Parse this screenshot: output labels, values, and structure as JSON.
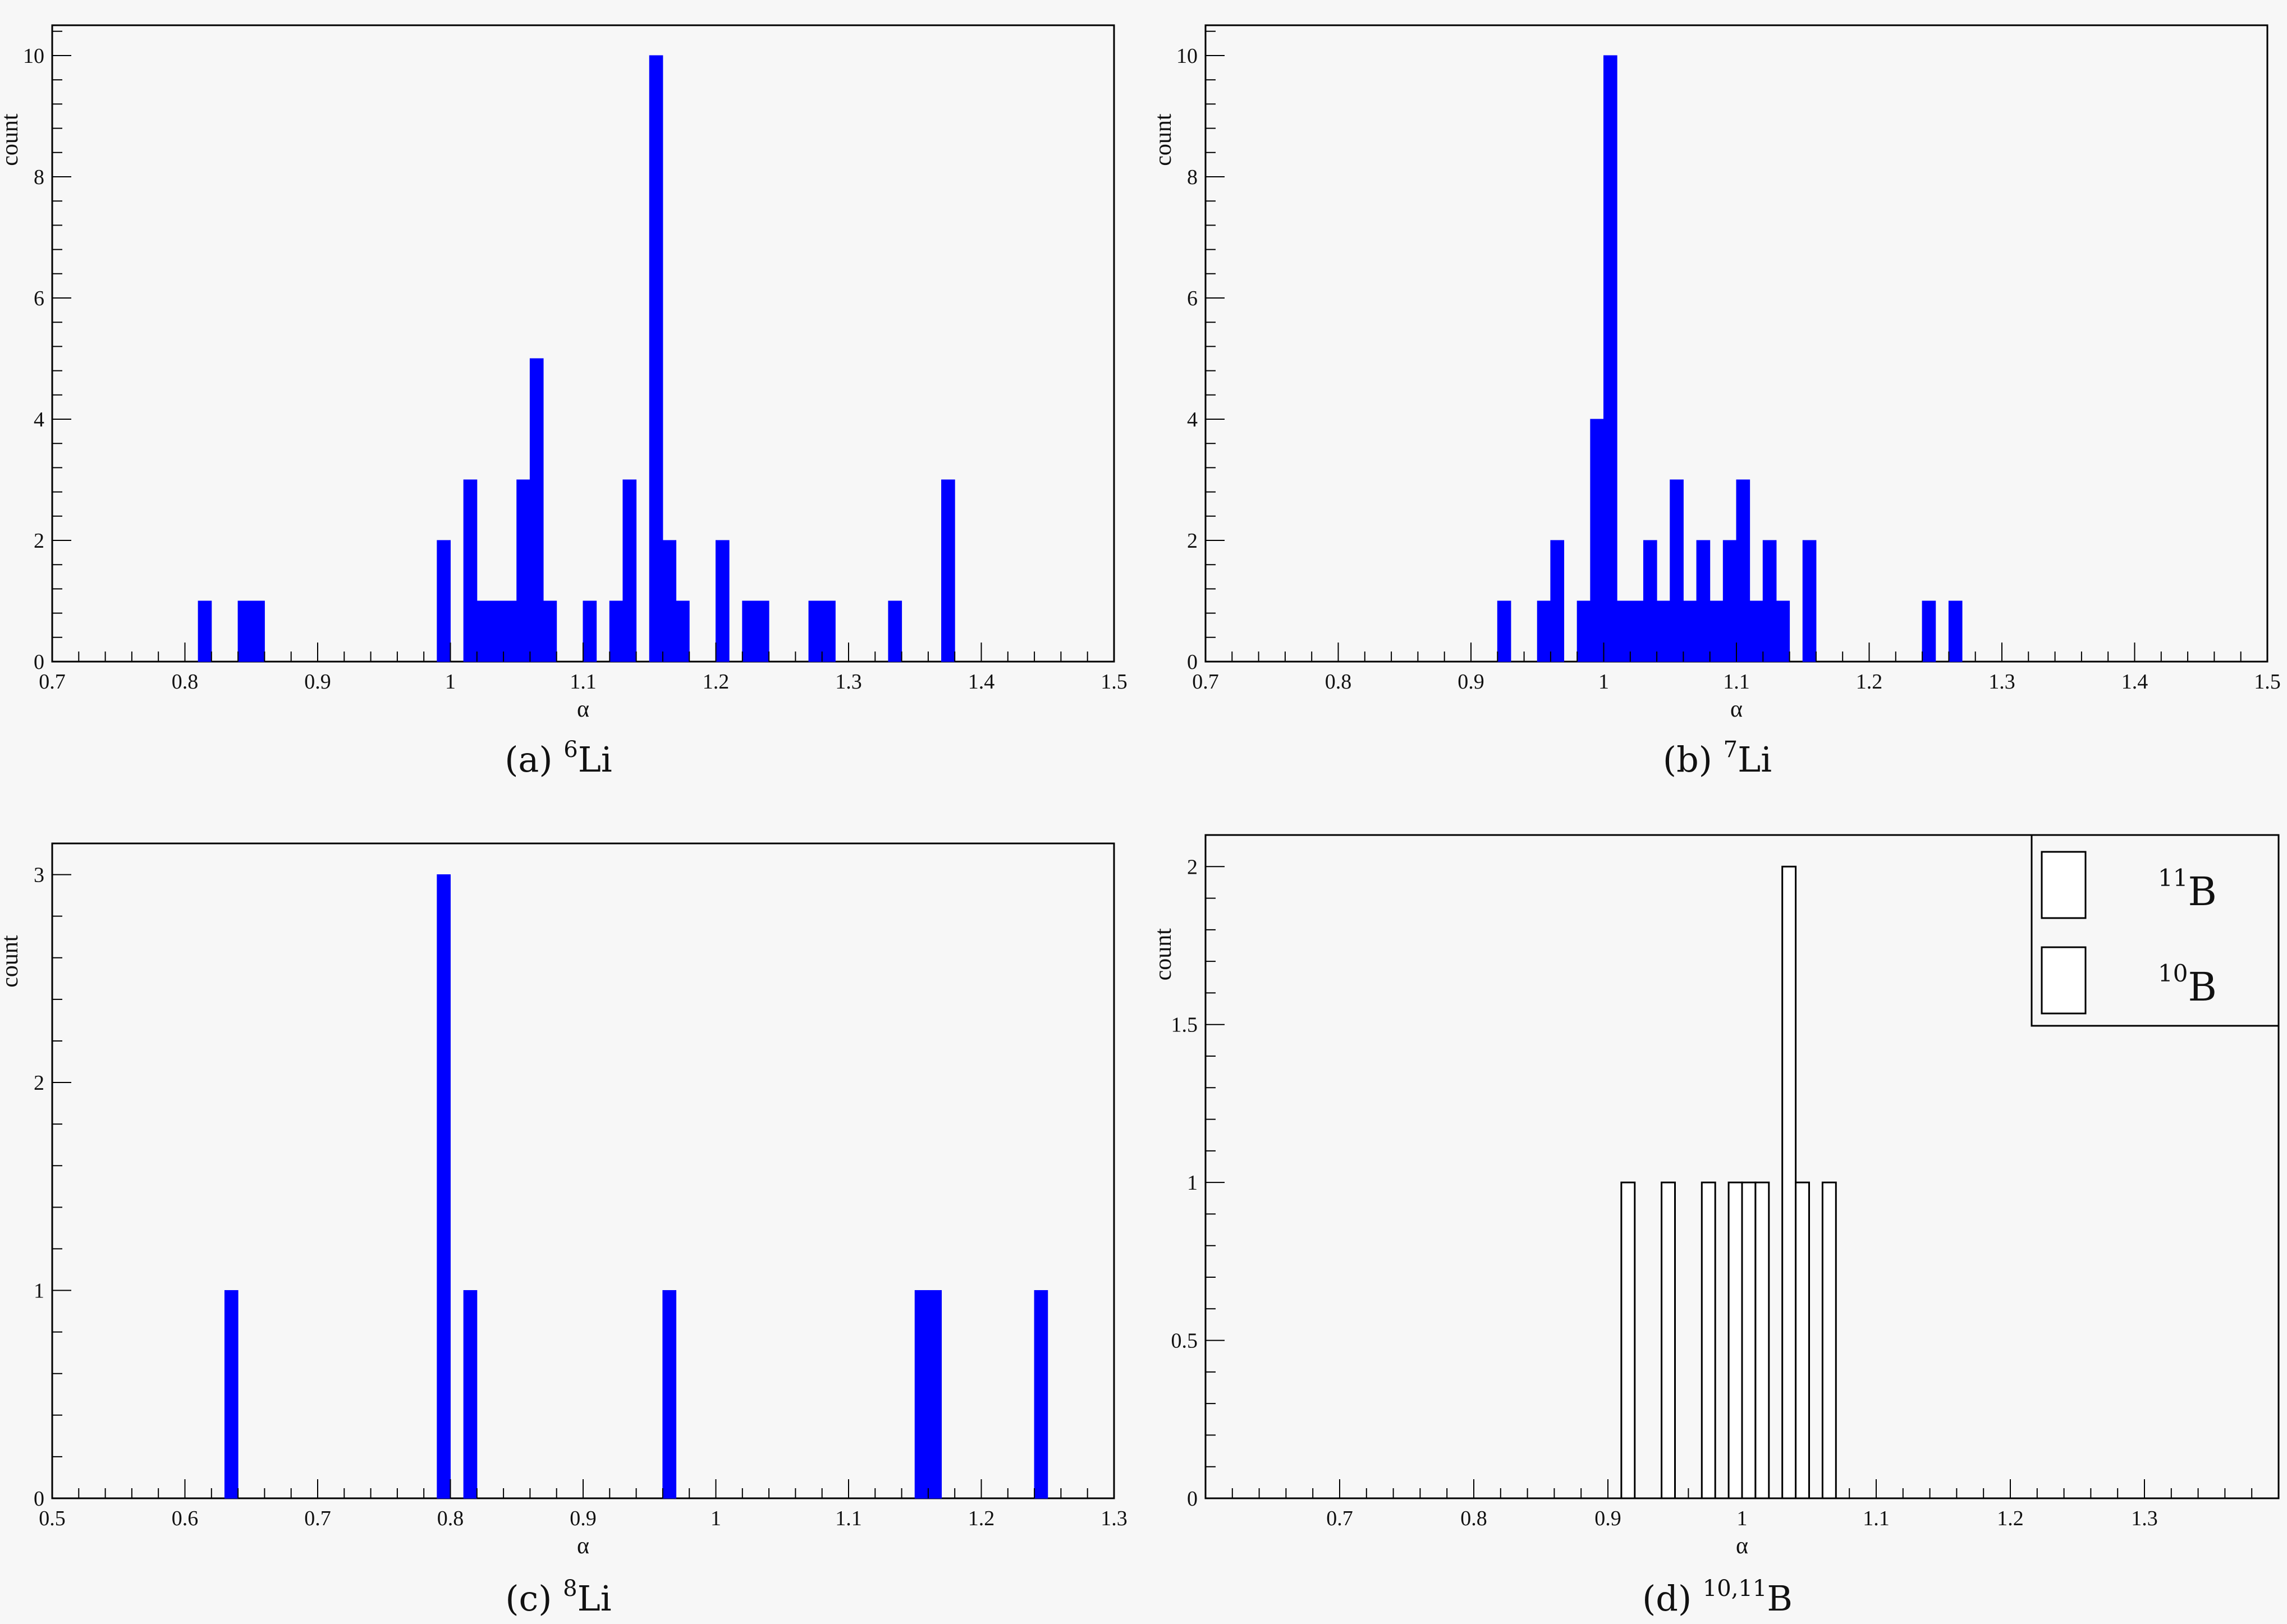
{
  "chart_data": [
    {
      "type": "bar",
      "caption": {
        "label": "(a)",
        "mass": "6",
        "element": "Li"
      },
      "xlabel": "α",
      "ylabel": "count",
      "xlim": [
        0.7,
        1.5
      ],
      "ylim": [
        0,
        10.5
      ],
      "bin_width": 0.01,
      "xticks": [
        "0.7",
        "0.8",
        "0.9",
        "1",
        "1.1",
        "1.2",
        "1.3",
        "1.4",
        "1.5"
      ],
      "yticks": [
        "0",
        "2",
        "4",
        "6",
        "8",
        "10"
      ],
      "color": "#0000ff",
      "bins": [
        {
          "x": 0.81,
          "count": 1
        },
        {
          "x": 0.84,
          "count": 1
        },
        {
          "x": 0.85,
          "count": 1
        },
        {
          "x": 0.99,
          "count": 2
        },
        {
          "x": 1.01,
          "count": 3
        },
        {
          "x": 1.02,
          "count": 1
        },
        {
          "x": 1.03,
          "count": 1
        },
        {
          "x": 1.04,
          "count": 1
        },
        {
          "x": 1.05,
          "count": 3
        },
        {
          "x": 1.06,
          "count": 5
        },
        {
          "x": 1.07,
          "count": 1
        },
        {
          "x": 1.1,
          "count": 1
        },
        {
          "x": 1.12,
          "count": 1
        },
        {
          "x": 1.13,
          "count": 3
        },
        {
          "x": 1.15,
          "count": 10
        },
        {
          "x": 1.16,
          "count": 2
        },
        {
          "x": 1.17,
          "count": 1
        },
        {
          "x": 1.2,
          "count": 2
        },
        {
          "x": 1.22,
          "count": 1
        },
        {
          "x": 1.23,
          "count": 1
        },
        {
          "x": 1.27,
          "count": 1
        },
        {
          "x": 1.28,
          "count": 1
        },
        {
          "x": 1.33,
          "count": 1
        },
        {
          "x": 1.37,
          "count": 3
        }
      ]
    },
    {
      "type": "bar",
      "caption": {
        "label": "(b)",
        "mass": "7",
        "element": "Li"
      },
      "xlabel": "α",
      "ylabel": "count",
      "xlim": [
        0.7,
        1.5
      ],
      "ylim": [
        0,
        10.5
      ],
      "bin_width": 0.01,
      "xticks": [
        "0.7",
        "0.8",
        "0.9",
        "1",
        "1.1",
        "1.2",
        "1.3",
        "1.4",
        "1.5"
      ],
      "yticks": [
        "0",
        "2",
        "4",
        "6",
        "8",
        "10"
      ],
      "color": "#0000ff",
      "bins": [
        {
          "x": 0.92,
          "count": 1
        },
        {
          "x": 0.95,
          "count": 1
        },
        {
          "x": 0.96,
          "count": 2
        },
        {
          "x": 0.98,
          "count": 1
        },
        {
          "x": 0.99,
          "count": 4
        },
        {
          "x": 1.0,
          "count": 10
        },
        {
          "x": 1.01,
          "count": 1
        },
        {
          "x": 1.02,
          "count": 1
        },
        {
          "x": 1.03,
          "count": 2
        },
        {
          "x": 1.04,
          "count": 1
        },
        {
          "x": 1.05,
          "count": 3
        },
        {
          "x": 1.06,
          "count": 1
        },
        {
          "x": 1.07,
          "count": 2
        },
        {
          "x": 1.08,
          "count": 1
        },
        {
          "x": 1.09,
          "count": 2
        },
        {
          "x": 1.1,
          "count": 3
        },
        {
          "x": 1.11,
          "count": 1
        },
        {
          "x": 1.12,
          "count": 2
        },
        {
          "x": 1.13,
          "count": 1
        },
        {
          "x": 1.15,
          "count": 2
        },
        {
          "x": 1.24,
          "count": 1
        },
        {
          "x": 1.26,
          "count": 1
        }
      ]
    },
    {
      "type": "bar",
      "caption": {
        "label": "(c)",
        "mass": "8",
        "element": "Li"
      },
      "xlabel": "α",
      "ylabel": "count",
      "xlim": [
        0.5,
        1.3
      ],
      "ylim": [
        0,
        3.15
      ],
      "bin_width": 0.01,
      "xticks": [
        "0.5",
        "0.6",
        "0.7",
        "0.8",
        "0.9",
        "1",
        "1.1",
        "1.2",
        "1.3"
      ],
      "yticks": [
        "0",
        "1",
        "2",
        "3"
      ],
      "color": "#0000ff",
      "bins": [
        {
          "x": 0.63,
          "count": 1
        },
        {
          "x": 0.79,
          "count": 3
        },
        {
          "x": 0.81,
          "count": 1
        },
        {
          "x": 0.96,
          "count": 1
        },
        {
          "x": 1.15,
          "count": 1
        },
        {
          "x": 1.16,
          "count": 1
        },
        {
          "x": 1.24,
          "count": 1
        }
      ]
    },
    {
      "type": "bar",
      "caption": {
        "label": "(d)",
        "mass": "10,11",
        "element": "B"
      },
      "xlabel": "α",
      "ylabel": "count",
      "xlim": [
        0.6,
        1.4
      ],
      "ylim": [
        0,
        2.1
      ],
      "bin_width": 0.01,
      "xticks": [
        "0.7",
        "0.8",
        "0.9",
        "1",
        "1.1",
        "1.2",
        "1.3"
      ],
      "yticks": [
        "0",
        "0.5",
        "1",
        "1.5",
        "2"
      ],
      "color": "#ffffff",
      "legend": [
        {
          "mass": "11",
          "element": "B"
        },
        {
          "mass": "10",
          "element": "B"
        }
      ],
      "legend_position": "top-right",
      "bins": [
        {
          "x": 0.91,
          "count": 1
        },
        {
          "x": 0.94,
          "count": 1
        },
        {
          "x": 0.97,
          "count": 1
        },
        {
          "x": 0.99,
          "count": 1
        },
        {
          "x": 1.0,
          "count": 1
        },
        {
          "x": 1.01,
          "count": 1
        },
        {
          "x": 1.03,
          "count": 2
        },
        {
          "x": 1.04,
          "count": 1
        },
        {
          "x": 1.06,
          "count": 1
        }
      ]
    }
  ]
}
